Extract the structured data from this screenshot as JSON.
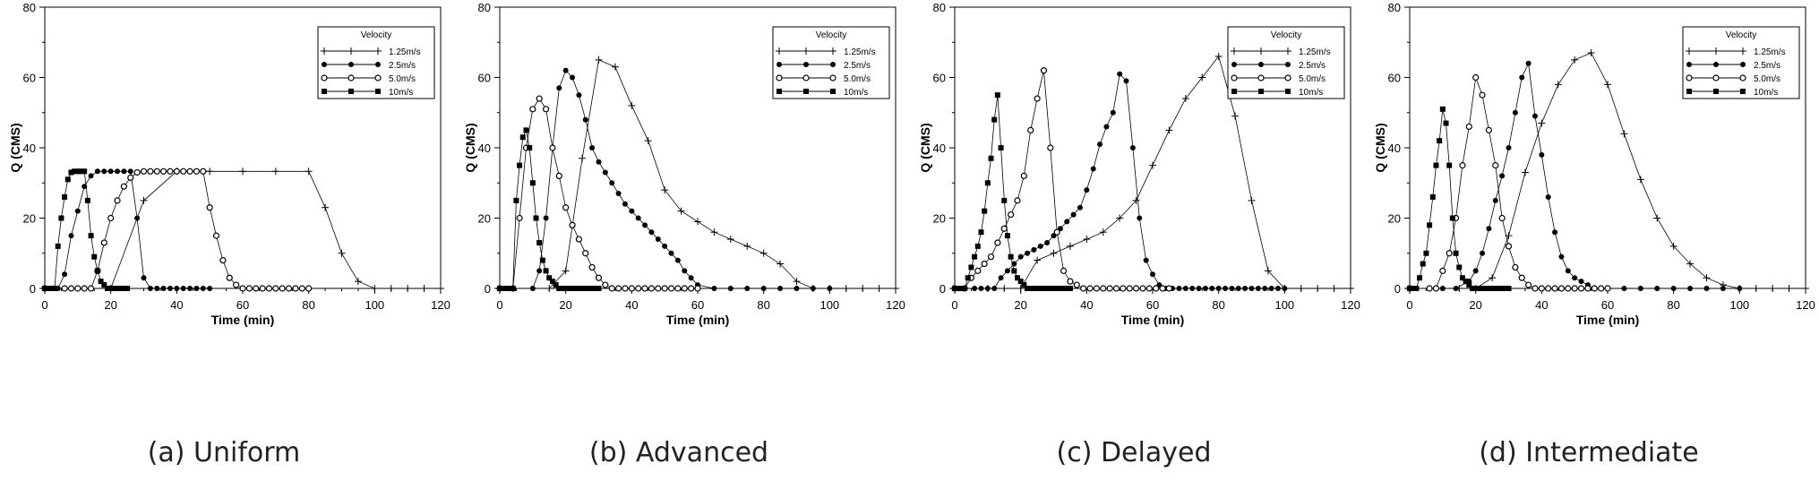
{
  "figure": {
    "ylabel": "Q (CMS)",
    "xlabel": "Time (min)",
    "legend_title": "Velocity",
    "x_ticks": [
      "0",
      "20",
      "40",
      "60",
      "80",
      "100",
      "120"
    ],
    "y_ticks": [
      "0",
      "20",
      "40",
      "60",
      "80"
    ]
  },
  "panels": [
    {
      "id": "a",
      "caption": "(a)  Uniform"
    },
    {
      "id": "b",
      "caption": "(b)  Advanced"
    },
    {
      "id": "c",
      "caption": "(c)  Delayed"
    },
    {
      "id": "d",
      "caption": "(d)  Intermediate"
    }
  ],
  "chart_data": [
    {
      "type": "line",
      "title": "(a) Uniform",
      "xlabel": "Time (min)",
      "ylabel": "Q (CMS)",
      "xlim": [
        0,
        120
      ],
      "ylim": [
        0,
        80
      ],
      "legend_title": "Velocity",
      "series": [
        {
          "name": "1.25m/s",
          "marker": "plus",
          "x": [
            0,
            20,
            30,
            40,
            50,
            60,
            70,
            80,
            85,
            90,
            95,
            100,
            105,
            110,
            115,
            120
          ],
          "y": [
            0,
            0,
            25,
            33.3,
            33.3,
            33.3,
            33.3,
            33.3,
            23,
            10,
            2,
            0,
            0,
            0,
            0,
            0
          ]
        },
        {
          "name": "2.5m/s",
          "marker": "filled-circle",
          "x": [
            0,
            4,
            6,
            8,
            10,
            12,
            14,
            16,
            18,
            20,
            22,
            24,
            26,
            28,
            30,
            32,
            34,
            36,
            38,
            40,
            42,
            44,
            46,
            48,
            50
          ],
          "y": [
            0,
            0,
            4,
            15,
            22,
            29,
            32,
            33.3,
            33.3,
            33.3,
            33.3,
            33.3,
            33.3,
            20,
            3,
            0,
            0,
            0,
            0,
            0,
            0,
            0,
            0,
            0,
            0
          ]
        },
        {
          "name": "5.0m/s",
          "marker": "open-circle",
          "x": [
            0,
            6,
            8,
            10,
            12,
            14,
            16,
            18,
            20,
            22,
            24,
            26,
            28,
            30,
            32,
            34,
            36,
            38,
            40,
            42,
            44,
            46,
            48,
            50,
            52,
            54,
            56,
            58,
            60,
            62,
            64,
            66,
            68,
            70,
            72,
            74,
            76,
            78,
            80
          ],
          "y": [
            0,
            0,
            0,
            0,
            0,
            0,
            5,
            13,
            20,
            25,
            29,
            31.5,
            33,
            33.3,
            33.3,
            33.3,
            33.3,
            33.3,
            33.3,
            33.3,
            33.3,
            33.3,
            33.3,
            23,
            15,
            8,
            3,
            1,
            0,
            0,
            0,
            0,
            0,
            0,
            0,
            0,
            0,
            0,
            0
          ]
        },
        {
          "name": "10m/s",
          "marker": "filled-square",
          "x": [
            0,
            1,
            2,
            3,
            4,
            5,
            6,
            7,
            8,
            9,
            10,
            11,
            12,
            13,
            14,
            15,
            16,
            17,
            18,
            19,
            20,
            21,
            22,
            23,
            24,
            25
          ],
          "y": [
            0,
            0,
            0,
            0,
            12,
            20,
            26,
            31,
            33,
            33.3,
            33.3,
            33.3,
            33.3,
            25,
            15,
            9,
            5,
            2,
            1,
            0,
            0,
            0,
            0,
            0,
            0,
            0
          ]
        }
      ]
    },
    {
      "type": "line",
      "title": "(b) Advanced",
      "xlabel": "Time (min)",
      "ylabel": "Q (CMS)",
      "xlim": [
        0,
        120
      ],
      "ylim": [
        0,
        80
      ],
      "legend_title": "Velocity",
      "series": [
        {
          "name": "1.25m/s",
          "marker": "plus",
          "x": [
            0,
            15,
            20,
            25,
            30,
            35,
            40,
            45,
            50,
            55,
            60,
            65,
            70,
            75,
            80,
            85,
            90,
            95,
            100,
            105,
            110,
            115,
            120
          ],
          "y": [
            0,
            0,
            5,
            37,
            65,
            63,
            52,
            42,
            28,
            22,
            19,
            16,
            14,
            12,
            10,
            7,
            2,
            0,
            0,
            0,
            0,
            0,
            0
          ]
        },
        {
          "name": "2.5m/s",
          "marker": "filled-circle",
          "x": [
            0,
            10,
            12,
            14,
            16,
            18,
            20,
            22,
            24,
            26,
            28,
            30,
            32,
            34,
            36,
            38,
            40,
            42,
            44,
            46,
            48,
            50,
            52,
            54,
            56,
            58,
            60,
            65,
            70,
            75,
            80,
            85,
            90,
            95,
            100
          ],
          "y": [
            0,
            0,
            5,
            20,
            40,
            57,
            62,
            60,
            55,
            48,
            40,
            36,
            33,
            30,
            27,
            24,
            22,
            20,
            18,
            16,
            14,
            12,
            10,
            8,
            5,
            3,
            1,
            0,
            0,
            0,
            0,
            0,
            0,
            0,
            0
          ]
        },
        {
          "name": "5.0m/s",
          "marker": "open-circle",
          "x": [
            0,
            4,
            6,
            8,
            10,
            12,
            14,
            16,
            18,
            20,
            22,
            24,
            26,
            28,
            30,
            32,
            34,
            36,
            38,
            40,
            42,
            44,
            46,
            48,
            50,
            52,
            54,
            56,
            58,
            60
          ],
          "y": [
            0,
            0,
            20,
            40,
            51,
            54,
            51,
            40,
            32,
            23,
            18,
            14,
            10,
            6,
            3,
            1,
            0,
            0,
            0,
            0,
            0,
            0,
            0,
            0,
            0,
            0,
            0,
            0,
            0,
            0
          ]
        },
        {
          "name": "10m/s",
          "marker": "filled-square",
          "x": [
            0,
            1,
            2,
            3,
            4,
            5,
            6,
            7,
            8,
            9,
            10,
            11,
            12,
            13,
            14,
            15,
            16,
            17,
            18,
            19,
            20,
            21,
            22,
            23,
            24,
            25,
            26,
            27,
            28,
            29,
            30
          ],
          "y": [
            0,
            0,
            0,
            0,
            0,
            25,
            35,
            43,
            45,
            40,
            30,
            20,
            13,
            8,
            5,
            3,
            2,
            1,
            0,
            0,
            0,
            0,
            0,
            0,
            0,
            0,
            0,
            0,
            0,
            0,
            0
          ]
        }
      ]
    },
    {
      "type": "line",
      "title": "(c) Delayed",
      "xlabel": "Time (min)",
      "ylabel": "Q (CMS)",
      "xlim": [
        0,
        120
      ],
      "ylim": [
        0,
        80
      ],
      "legend_title": "Velocity",
      "series": [
        {
          "name": "1.25m/s",
          "marker": "plus",
          "x": [
            0,
            10,
            15,
            20,
            25,
            30,
            35,
            40,
            45,
            50,
            55,
            60,
            65,
            70,
            75,
            80,
            85,
            90,
            95,
            100,
            105,
            110,
            115,
            120
          ],
          "y": [
            0,
            0,
            0,
            0,
            8,
            10,
            12,
            14,
            16,
            20,
            25,
            35,
            45,
            54,
            60,
            66,
            49,
            25,
            5,
            0,
            0,
            0,
            0,
            0
          ]
        },
        {
          "name": "2.5m/s",
          "marker": "filled-circle",
          "x": [
            0,
            6,
            8,
            10,
            12,
            14,
            16,
            18,
            20,
            22,
            24,
            26,
            28,
            30,
            32,
            34,
            36,
            38,
            40,
            42,
            44,
            46,
            48,
            50,
            52,
            54,
            56,
            58,
            60,
            62,
            64,
            66,
            68,
            70,
            72,
            74,
            76,
            78,
            80,
            82,
            84,
            86,
            88,
            90,
            92,
            94,
            96,
            98,
            100
          ],
          "y": [
            0,
            0,
            0,
            0,
            0,
            3,
            5,
            7,
            9,
            10,
            11,
            12,
            13,
            15,
            17,
            19,
            21,
            23,
            28,
            34,
            41,
            46,
            50,
            61,
            59,
            40,
            20,
            8,
            4,
            1,
            0,
            0,
            0,
            0,
            0,
            0,
            0,
            0,
            0,
            0,
            0,
            0,
            0,
            0,
            0,
            0,
            0,
            0,
            0
          ]
        },
        {
          "name": "5.0m/s",
          "marker": "open-circle",
          "x": [
            0,
            3,
            5,
            7,
            9,
            11,
            13,
            15,
            17,
            19,
            21,
            23,
            25,
            27,
            29,
            31,
            33,
            35,
            37,
            39,
            41,
            43,
            45,
            47,
            49,
            51,
            53,
            55,
            57,
            59,
            61,
            63,
            65
          ],
          "y": [
            0,
            0,
            3,
            5,
            7,
            9,
            13,
            17,
            21,
            25,
            32,
            45,
            54,
            62,
            40,
            16,
            5,
            2,
            1,
            0,
            0,
            0,
            0,
            0,
            0,
            0,
            0,
            0,
            0,
            0,
            0,
            0,
            0
          ]
        },
        {
          "name": "10m/s",
          "marker": "filled-square",
          "x": [
            0,
            1,
            2,
            3,
            4,
            5,
            6,
            7,
            8,
            9,
            10,
            11,
            12,
            13,
            14,
            15,
            16,
            17,
            18,
            19,
            20,
            21,
            22,
            23,
            24,
            25,
            26,
            27,
            28,
            29,
            30,
            31,
            32,
            33,
            34,
            35
          ],
          "y": [
            0,
            0,
            0,
            0,
            3,
            6,
            9,
            12,
            16,
            22,
            30,
            37,
            48,
            55,
            40,
            25,
            15,
            9,
            5,
            3,
            2,
            1,
            0,
            0,
            0,
            0,
            0,
            0,
            0,
            0,
            0,
            0,
            0,
            0,
            0,
            0
          ]
        }
      ]
    },
    {
      "type": "line",
      "title": "(d) Intermediate",
      "xlabel": "Time (min)",
      "ylabel": "Q (CMS)",
      "xlim": [
        0,
        120
      ],
      "ylim": [
        0,
        80
      ],
      "legend_title": "Velocity",
      "series": [
        {
          "name": "1.25m/s",
          "marker": "plus",
          "x": [
            0,
            15,
            20,
            25,
            30,
            35,
            40,
            45,
            50,
            55,
            60,
            65,
            70,
            75,
            80,
            85,
            90,
            95,
            100,
            105,
            110,
            115,
            120
          ],
          "y": [
            0,
            0,
            0,
            3,
            15,
            33,
            47,
            58,
            65,
            67,
            58,
            44,
            31,
            20,
            12,
            7,
            3,
            1,
            0,
            0,
            0,
            0,
            0
          ]
        },
        {
          "name": "2.5m/s",
          "marker": "filled-circle",
          "x": [
            0,
            10,
            14,
            18,
            20,
            22,
            24,
            26,
            28,
            30,
            32,
            34,
            36,
            38,
            40,
            42,
            44,
            46,
            48,
            50,
            52,
            54,
            56,
            58,
            60,
            65,
            70,
            75,
            80,
            85,
            90,
            95,
            100
          ],
          "y": [
            0,
            0,
            0,
            2,
            5,
            10,
            17,
            25,
            32,
            40,
            50,
            60,
            64,
            49,
            38,
            26,
            16,
            9,
            5,
            3,
            2,
            1,
            0,
            0,
            0,
            0,
            0,
            0,
            0,
            0,
            0,
            0,
            0
          ]
        },
        {
          "name": "5.0m/s",
          "marker": "open-circle",
          "x": [
            0,
            6,
            8,
            10,
            12,
            14,
            16,
            18,
            20,
            22,
            24,
            26,
            28,
            30,
            32,
            34,
            36,
            38,
            40,
            42,
            44,
            46,
            48,
            50,
            52,
            54,
            56,
            58,
            60
          ],
          "y": [
            0,
            0,
            0,
            5,
            10,
            20,
            35,
            46,
            60,
            55,
            45,
            35,
            20,
            12,
            6,
            3,
            1,
            0,
            0,
            0,
            0,
            0,
            0,
            0,
            0,
            0,
            0,
            0,
            0
          ]
        },
        {
          "name": "10m/s",
          "marker": "filled-square",
          "x": [
            0,
            1,
            2,
            3,
            4,
            5,
            6,
            7,
            8,
            9,
            10,
            11,
            12,
            13,
            14,
            15,
            16,
            17,
            18,
            19,
            20,
            21,
            22,
            23,
            24,
            25,
            26,
            27,
            28,
            29,
            30
          ],
          "y": [
            0,
            0,
            0,
            3,
            7,
            10,
            18,
            26,
            35,
            42,
            51,
            47,
            35,
            20,
            10,
            6,
            3,
            2,
            1,
            0,
            0,
            0,
            0,
            0,
            0,
            0,
            0,
            0,
            0,
            0,
            0
          ]
        }
      ]
    }
  ]
}
